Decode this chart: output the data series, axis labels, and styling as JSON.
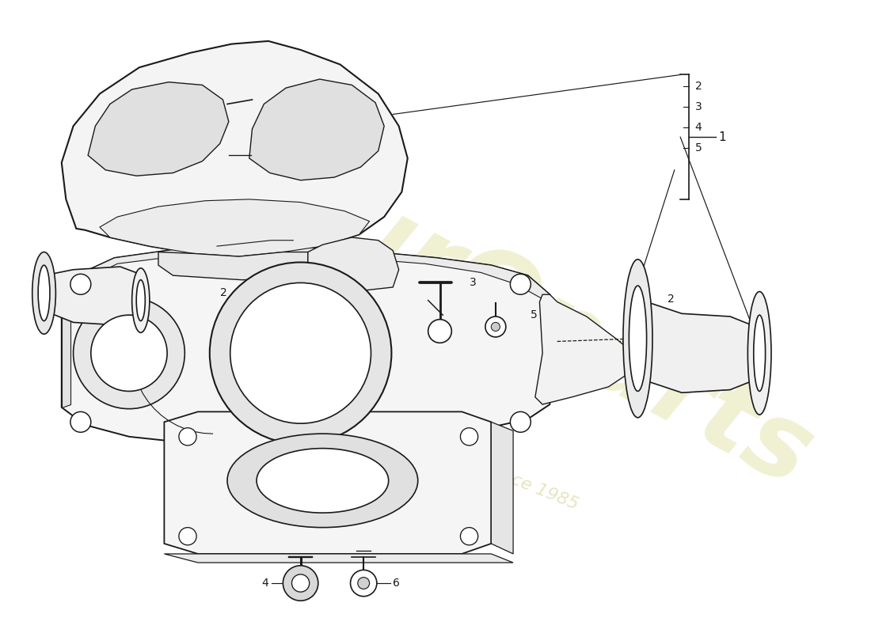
{
  "bg": "#ffffff",
  "lc": "#1a1a1a",
  "lw": 1.2,
  "wm1_color": "#dede9e",
  "wm2_color": "#d0d090",
  "fig_w": 11.0,
  "fig_h": 8.0,
  "dpi": 100
}
